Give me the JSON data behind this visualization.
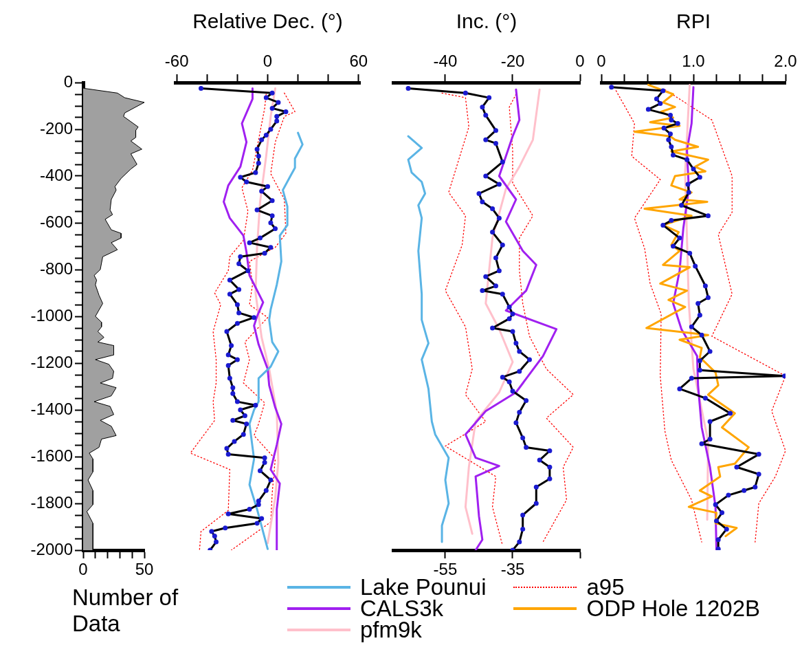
{
  "chart_data": [
    {
      "type": "area",
      "orientation": "horizontal",
      "xlabel": "Number of Data",
      "xlim": [
        0,
        50
      ],
      "xticks": [
        0,
        {
          "value": 10,
          "label": null
        },
        {
          "value": 20,
          "label": null
        },
        {
          "value": 30,
          "label": null
        },
        {
          "value": 40,
          "label": null
        },
        50
      ],
      "ylim": [
        -2000,
        0
      ],
      "yticks": [
        0,
        {
          "value": -50,
          "label": null
        },
        {
          "value": -100,
          "label": null
        },
        {
          "value": -150,
          "label": null
        },
        -200,
        {
          "value": -250,
          "label": null
        },
        {
          "value": -300,
          "label": null
        },
        {
          "value": -350,
          "label": null
        },
        -400,
        {
          "value": -450,
          "label": null
        },
        {
          "value": -500,
          "label": null
        },
        {
          "value": -550,
          "label": null
        },
        -600,
        {
          "value": -650,
          "label": null
        },
        {
          "value": -700,
          "label": null
        },
        {
          "value": -750,
          "label": null
        },
        -800,
        {
          "value": -850,
          "label": null
        },
        {
          "value": -900,
          "label": null
        },
        {
          "value": -950,
          "label": null
        },
        -1000,
        {
          "value": -1050,
          "label": null
        },
        {
          "value": -1100,
          "label": null
        },
        {
          "value": -1150,
          "label": null
        },
        -1200,
        {
          "value": -1250,
          "label": null
        },
        {
          "value": -1300,
          "label": null
        },
        {
          "value": -1350,
          "label": null
        },
        -1400,
        {
          "value": -1450,
          "label": null
        },
        {
          "value": -1500,
          "label": null
        },
        {
          "value": -1550,
          "label": null
        },
        -1600,
        {
          "value": -1650,
          "label": null
        },
        {
          "value": -1700,
          "label": null
        },
        {
          "value": -1750,
          "label": null
        },
        -1800,
        {
          "value": -1850,
          "label": null
        },
        {
          "value": -1900,
          "label": null
        },
        {
          "value": -1950,
          "label": null
        },
        -2000
      ],
      "grid": false,
      "legend": false,
      "series": [
        {
          "color": "#a0a0a0",
          "x": [
            -25,
            -45,
            -65,
            -85,
            -130,
            -145,
            -190,
            -205,
            -235,
            -250,
            -285,
            -305,
            -350,
            -370,
            -410,
            -445,
            -460,
            -500,
            -545,
            -565,
            -585,
            -630,
            -645,
            -665,
            -685,
            -715,
            -745,
            -800,
            -825,
            -845,
            -865,
            -910,
            -945,
            -1000,
            -1025,
            -1045,
            -1065,
            -1090,
            -1110,
            -1125,
            -1165,
            -1185,
            -1205,
            -1235,
            -1265,
            -1285,
            -1305,
            -1340,
            -1365,
            -1385,
            -1420,
            -1445,
            -1470,
            -1510,
            -1525,
            -1560,
            -1585,
            -1610,
            -1665,
            -1700,
            -1745,
            -1805,
            -1835,
            -1885,
            -2000
          ],
          "values": [
            1,
            28,
            34,
            50,
            34,
            33,
            45,
            43,
            43,
            39,
            48,
            39,
            44,
            39,
            31,
            26,
            27,
            23,
            22,
            24,
            18,
            23,
            31,
            31,
            23,
            28,
            16,
            14,
            9,
            11,
            10,
            13,
            16,
            10,
            15,
            15,
            12,
            17,
            12,
            25,
            25,
            10,
            21,
            25,
            24,
            14,
            27,
            23,
            9,
            22,
            25,
            14,
            23,
            27,
            15,
            13,
            5,
            8,
            8,
            4,
            8,
            8,
            3,
            8,
            8
          ]
        }
      ]
    },
    {
      "type": "line",
      "orientation": "horizontal",
      "xlabel": "Relative Dec. (°)",
      "xlim": [
        -61,
        61
      ],
      "xticks": [
        -60,
        {
          "value": -40,
          "label": null
        },
        {
          "value": -20,
          "label": null
        },
        0,
        {
          "value": 20,
          "label": null
        },
        {
          "value": 40,
          "label": null
        },
        60
      ],
      "ylim": [
        -2000,
        0
      ],
      "yticks": [
        0,
        -200,
        -400,
        -600,
        -800,
        -1000,
        -1200,
        -1400,
        -1600,
        -1800,
        -2000
      ],
      "tick_labels": "x",
      "grid": false,
      "legend": "bottom",
      "series": [
        {
          "color": "#000000",
          "marker": "circle",
          "x": [
            -25,
            -45,
            -65,
            -85,
            -110,
            -125,
            -145,
            -165,
            -200,
            -225,
            -245,
            -285,
            -315,
            -345,
            -385,
            -405,
            -425,
            -445,
            -465,
            -505,
            -545,
            -570,
            -600,
            -625,
            -665,
            -685,
            -705,
            -730,
            -745,
            -775,
            -805,
            -845,
            -885,
            -905,
            -950,
            -985,
            -1005,
            -1030,
            -1065,
            -1125,
            -1165,
            -1185,
            -1210,
            -1265,
            -1305,
            -1330,
            -1365,
            -1380,
            -1400,
            -1425,
            -1445,
            -1460,
            -1505,
            -1535,
            -1565,
            -1590,
            -1605,
            -1625,
            -1660,
            -1700,
            -1745,
            -1790,
            -1805,
            -1825,
            -1845,
            -1865,
            -1885,
            -1905,
            -1920,
            -1940,
            -1965,
            -2000
          ],
          "values": [
            -44,
            3,
            -1,
            7,
            3,
            12,
            6,
            6,
            2,
            -1,
            -4,
            -7,
            -6,
            -6,
            -8,
            -18,
            -14,
            0,
            -4,
            3,
            -7,
            3,
            2,
            5,
            -5,
            -12,
            2,
            -2,
            -18,
            -19,
            -13,
            -25,
            -19,
            -25,
            -20,
            -19,
            -9,
            -20,
            -27,
            -24,
            -26,
            -20,
            -26,
            -25,
            -23,
            -23,
            -20,
            -8,
            -18,
            -15,
            -23,
            -14,
            -16,
            -22,
            -27,
            -26,
            -2,
            -2,
            -5,
            2,
            -1,
            -6,
            -6,
            -12,
            -26,
            -4,
            -7,
            -28,
            -37,
            -35,
            -34,
            -38
          ]
        },
        {
          "name": "Lake Pounui",
          "color": "#5ab4e5",
          "x": [
            -215,
            -265,
            -325,
            -365,
            -400,
            -460,
            -530,
            -610,
            -655,
            -765,
            -865,
            -970,
            -1015,
            -1110,
            -1150,
            -1215,
            -1265,
            -1365,
            -1400,
            -1460,
            -1610,
            -1720,
            -1825,
            -1995
          ],
          "values": [
            20,
            23,
            18,
            18,
            15,
            10,
            13,
            13,
            8,
            9,
            6,
            2,
            1,
            3,
            7,
            2,
            -6,
            -6,
            -9,
            -12,
            -9,
            -12,
            -7,
            0
          ]
        },
        {
          "name": "CALS3k",
          "color": "#a020f0",
          "x": [
            -25,
            -70,
            -175,
            -255,
            -360,
            -440,
            -510,
            -580,
            -655,
            -725,
            -825,
            -940,
            -1000,
            -1040,
            -1120,
            -1225,
            -1295,
            -1390,
            -1460,
            -1550,
            -1655,
            -1715,
            -1825,
            -2000
          ],
          "values": [
            -10,
            -10,
            -17,
            -14,
            -18,
            -26,
            -29,
            -25,
            -16,
            -14,
            -12,
            -3,
            -7,
            -9,
            -6,
            0,
            1,
            5,
            9,
            6,
            2,
            8,
            6,
            6
          ]
        },
        {
          "name": "pfm9k",
          "color": "#ffc0cb",
          "x": [
            -25,
            -145,
            -315,
            -510,
            -705,
            -900,
            -1090,
            -1225,
            -1410,
            -1625,
            -1775,
            -1970
          ],
          "values": [
            5,
            2,
            -1,
            -5,
            -7,
            -8,
            -4,
            1,
            6,
            7,
            5,
            0
          ]
        },
        {
          "name": "a95",
          "color": "#ff0000",
          "line_style": "dotted",
          "x": [
            -50,
            -110,
            -245,
            -375,
            -450,
            -550,
            -675,
            -745,
            -805,
            -900,
            -950,
            -1065,
            -1185,
            -1285,
            -1365,
            -1445,
            -1585,
            -1655,
            -1830,
            -1920,
            -2000
          ],
          "values": [
            -1,
            -2,
            -6,
            -10,
            -17,
            -13,
            -16,
            -25,
            -26,
            -35,
            -31,
            -36,
            -34,
            -34,
            -36,
            -35,
            -51,
            -25,
            -26,
            -44,
            -45
          ]
        },
        {
          "color": "#ff0000",
          "line_style": "dotted",
          "x": [
            -45,
            -125,
            -145,
            -255,
            -390,
            -500,
            -645,
            -705,
            -765,
            -865,
            -950,
            -1005,
            -1110,
            -1185,
            -1285,
            -1370,
            -1460,
            -1510,
            -1610,
            -1755,
            -1880,
            -2000
          ],
          "values": [
            11,
            18,
            11,
            5,
            2,
            11,
            12,
            5,
            -12,
            -10,
            -12,
            0,
            -15,
            -12,
            -16,
            -2,
            -6,
            -9,
            5,
            3,
            2,
            -24
          ]
        }
      ]
    },
    {
      "type": "line",
      "orientation": "horizontal",
      "xlabel": "Inc. (°)",
      "xlim": [
        -55.5,
        0
      ],
      "xticks": [
        -40,
        -20,
        0
      ],
      "x2lim": [
        -70.5,
        -15
      ],
      "x2ticks": [
        -55,
        -35,
        {
          "value": -15,
          "label": null
        }
      ],
      "ylim": [
        -2000,
        0
      ],
      "yticks": [
        0,
        -200,
        -400,
        -600,
        -800,
        -1000,
        -1200,
        -1400,
        -1600,
        -1800,
        -2000
      ],
      "tick_labels": "x",
      "grid": false,
      "series": [
        {
          "color": "#000000",
          "marker": "circle",
          "x": [
            -25,
            -45,
            -65,
            -105,
            -140,
            -205,
            -245,
            -260,
            -340,
            -400,
            -435,
            -475,
            -510,
            -540,
            -580,
            -640,
            -695,
            -750,
            -805,
            -830,
            -870,
            -890,
            -905,
            -960,
            -990,
            -1010,
            -1050,
            -1065,
            -1115,
            -1150,
            -1185,
            -1235,
            -1260,
            -1280,
            -1320,
            -1360,
            -1410,
            -1455,
            -1520,
            -1560,
            -1575,
            -1615,
            -1645,
            -1695,
            -1730,
            -1800,
            -1850,
            -1910,
            -1965,
            -2000
          ],
          "values": [
            -51,
            -34,
            -27,
            -29,
            -28,
            -25,
            -28,
            -25,
            -23,
            -28,
            -24,
            -30,
            -29,
            -26,
            -24,
            -26,
            -23,
            -25,
            -24,
            -28,
            -25,
            -29,
            -23,
            -21,
            -20,
            -21,
            -26,
            -20,
            -19,
            -18,
            -15,
            -18,
            -23,
            -21,
            -20,
            -16,
            -18,
            -19,
            -17,
            -16,
            -9,
            -12,
            -9,
            -9,
            -13,
            -13,
            -17,
            -17,
            -18,
            -20
          ]
        },
        {
          "color": "#5ab4e5",
          "axis": "x2",
          "x": [
            -230,
            -280,
            -330,
            -385,
            -425,
            -475,
            -525,
            -580,
            -720,
            -905,
            -1015,
            -1115,
            -1185,
            -1310,
            -1450,
            -1505,
            -1605,
            -1700,
            -1800,
            -1895,
            -1965
          ],
          "values": [
            -66,
            -62,
            -66,
            -65,
            -62,
            -61,
            -63,
            -62,
            -63,
            -62,
            -62,
            -60,
            -62,
            -60,
            -59,
            -58,
            -54,
            -55,
            -54,
            -56,
            -56
          ]
        },
        {
          "color": "#a020f0",
          "x": [
            -30,
            -160,
            -230,
            -400,
            -500,
            -595,
            -720,
            -780,
            -890,
            -975,
            -1055,
            -1170,
            -1325,
            -1405,
            -1505,
            -1605,
            -1640,
            -1685,
            -1855,
            -1955,
            -2000
          ],
          "values": [
            -19,
            -18,
            -20,
            -24,
            -19,
            -22,
            -17,
            -13,
            -16,
            -22,
            -7,
            -11,
            -19,
            -28,
            -34,
            -31,
            -24,
            -31,
            -30,
            -29,
            -31
          ]
        },
        {
          "color": "#ffc0cb",
          "x": [
            -30,
            -245,
            -360,
            -455,
            -665,
            -945,
            -1055,
            -1195,
            -1325,
            -1450,
            -1645,
            -1815,
            -1930
          ],
          "values": [
            -12,
            -14,
            -18,
            -22,
            -26,
            -28,
            -24,
            -20,
            -24,
            -31,
            -33,
            -34,
            -32
          ]
        },
        {
          "color": "#ff0000",
          "line_style": "dotted",
          "x": [
            -45,
            -65,
            -190,
            -470,
            -570,
            -695,
            -890,
            -1045,
            -1225,
            -1335,
            -1450,
            -1555,
            -1685,
            -1815,
            -1980
          ],
          "values": [
            -41,
            -34,
            -33,
            -39,
            -34,
            -35,
            -40,
            -34,
            -32,
            -34,
            -28,
            -40,
            -25,
            -26,
            -23
          ]
        },
        {
          "color": "#ff0000",
          "line_style": "dotted",
          "x": [
            -50,
            -105,
            -290,
            -430,
            -570,
            -665,
            -805,
            -945,
            -1085,
            -1225,
            -1335,
            -1435,
            -1560,
            -1645,
            -1785,
            -1965
          ],
          "values": [
            -19,
            -21,
            -20,
            -20,
            -14,
            -18,
            -18,
            -17,
            -15,
            -10,
            -2,
            -10,
            -2,
            -5,
            -4,
            -11
          ]
        }
      ]
    },
    {
      "type": "line",
      "orientation": "horizontal",
      "xlabel": "RPI",
      "xlim": [
        0,
        2
      ],
      "xticks": [
        0,
        {
          "value": 0.25,
          "label": null
        },
        {
          "value": 0.5,
          "label": null
        },
        {
          "value": 0.75,
          "label": null
        },
        {
          "value": 1,
          "label": "1.0"
        },
        {
          "value": 1.25,
          "label": null
        },
        {
          "value": 1.5,
          "label": null
        },
        {
          "value": 1.75,
          "label": null
        },
        {
          "value": 2,
          "label": "2.0"
        }
      ],
      "ylim": [
        -2000,
        0
      ],
      "yticks": [
        0,
        -200,
        -400,
        -600,
        -800,
        -1000,
        -1200,
        -1400,
        -1600,
        -1800,
        -2000
      ],
      "tick_labels": "x",
      "grid": false,
      "legend": "bottom",
      "series": [
        {
          "color": "#000000",
          "marker": "circle",
          "x": [
            -20,
            -35,
            -70,
            -90,
            -115,
            -140,
            -160,
            -175,
            -195,
            -220,
            -245,
            -275,
            -310,
            -330,
            -370,
            -405,
            -435,
            -470,
            -525,
            -570,
            -590,
            -610,
            -665,
            -700,
            -730,
            -785,
            -870,
            -920,
            -945,
            -995,
            -1045,
            -1080,
            -1150,
            -1190,
            -1230,
            -1255,
            -1265,
            -1310,
            -1350,
            -1415,
            -1450,
            -1525,
            -1545,
            -1590,
            -1645,
            -1675,
            -1730,
            -1745,
            -1765,
            -1805,
            -1840,
            -1875,
            -1910,
            -1955,
            -1995
          ],
          "values": [
            0.11,
            0.67,
            0.6,
            0.64,
            0.51,
            0.75,
            0.76,
            0.83,
            0.68,
            0.75,
            0.73,
            0.76,
            0.78,
            0.93,
            1.0,
            1.07,
            0.94,
            0.95,
            0.87,
            1.16,
            0.76,
            0.67,
            0.85,
            0.78,
            0.96,
            1.02,
            1.13,
            1.16,
            1.05,
            1.07,
            0.98,
            1.09,
            1.18,
            1.07,
            1.07,
            1.99,
            0.98,
            0.85,
            1.13,
            1.4,
            1.18,
            1.18,
            1.09,
            1.71,
            1.47,
            1.71,
            1.67,
            1.55,
            1.38,
            1.24,
            1.31,
            1.25,
            1.36,
            1.27,
            1.27
          ]
        },
        {
          "name": "ODP Hole 1202B",
          "color": "#ffa500",
          "x": [
            -10,
            -50,
            -85,
            -105,
            -125,
            -150,
            -170,
            -185,
            -210,
            -230,
            -245,
            -275,
            -295,
            -330,
            -360,
            -380,
            -400,
            -440,
            -470,
            -500,
            -510,
            -540,
            -570,
            -610,
            -640,
            -695,
            -720,
            -780,
            -790,
            -860,
            -890,
            -930,
            -960,
            -1050,
            -1080,
            -1100,
            -1135,
            -1175,
            -1240,
            -1295,
            -1335,
            -1415,
            -1475,
            -1560,
            -1630,
            -1645,
            -1685,
            -1745,
            -1770,
            -1815,
            -1840,
            -1885,
            -1905,
            -1940
          ],
          "values": [
            0.51,
            0.78,
            0.67,
            0.8,
            0.65,
            0.78,
            0.53,
            0.85,
            0.36,
            0.75,
            0.8,
            1.05,
            0.76,
            1.16,
            1.02,
            1.13,
            0.8,
            0.76,
            0.98,
            0.85,
            1.15,
            0.47,
            0.98,
            0.67,
            0.84,
            0.76,
            0.85,
            0.67,
            0.96,
            0.64,
            0.93,
            0.73,
            0.91,
            0.49,
            1.16,
            0.85,
            1.09,
            1.07,
            1.24,
            1.27,
            1.16,
            1.45,
            1.31,
            1.6,
            1.45,
            1.27,
            1.29,
            1.07,
            1.2,
            0.95,
            1.25,
            1.24,
            1.47,
            1.35
          ]
        },
        {
          "color": "#a020f0",
          "x": [
            -20,
            -175,
            -290,
            -455,
            -625,
            -805,
            -945,
            -1055,
            -1170,
            -1295,
            -1475,
            -1645,
            -1815,
            -2000
          ],
          "values": [
            1.0,
            0.98,
            0.93,
            0.95,
            0.89,
            0.85,
            0.78,
            0.87,
            1.04,
            1.05,
            1.09,
            1.18,
            1.24,
            1.25
          ]
        },
        {
          "color": "#ffc0cb",
          "x": [
            -10,
            -385,
            -665,
            -945,
            -1225,
            -1535,
            -1870
          ],
          "values": [
            0.96,
            0.91,
            0.93,
            0.95,
            1.0,
            1.16,
            1.15
          ]
        },
        {
          "color": "#ff0000",
          "line_style": "dotted",
          "x": [
            -35,
            -175,
            -315,
            -415,
            -580,
            -710,
            -860,
            -990,
            -1255,
            -1490,
            -1615,
            -1785,
            -1965
          ],
          "values": [
            0.16,
            0.36,
            0.33,
            0.64,
            0.36,
            0.47,
            0.53,
            0.65,
            0.64,
            0.69,
            0.76,
            0.98,
            1.09
          ]
        },
        {
          "color": "#ff0000",
          "line_style": "dotted",
          "x": [
            -30,
            -160,
            -400,
            -555,
            -650,
            -905,
            -1085,
            -1255,
            -1405,
            -1575,
            -1685,
            -1800,
            -1965
          ],
          "values": [
            0.69,
            1.2,
            1.42,
            1.42,
            1.27,
            1.42,
            1.2,
            2.0,
            1.85,
            2.0,
            1.89,
            1.71,
            1.67
          ]
        }
      ]
    }
  ]
}
